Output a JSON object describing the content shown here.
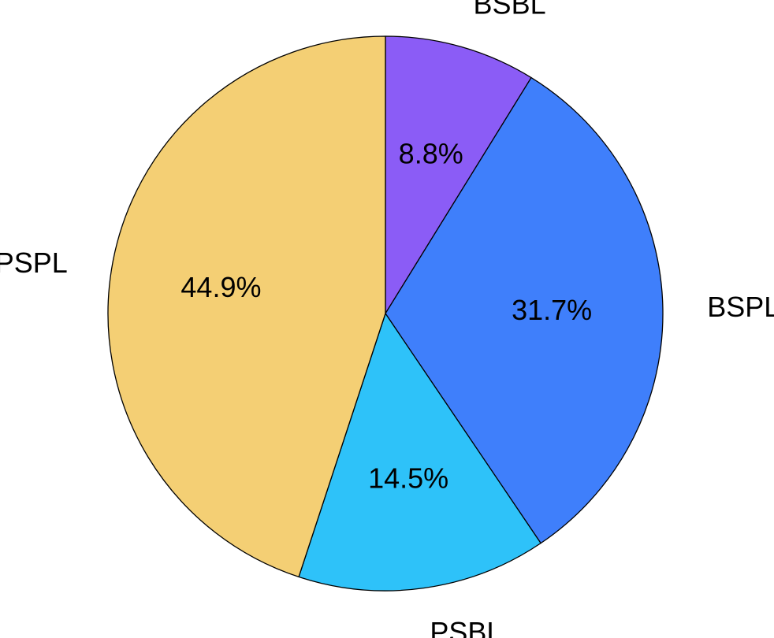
{
  "chart_data": {
    "type": "pie",
    "start_angle_deg": 90,
    "direction": "clockwise",
    "slices": [
      {
        "label": "BSBL",
        "value": 8.8,
        "pct_text": "8.8%",
        "color": "#8b5cf6"
      },
      {
        "label": "BSPL",
        "value": 31.7,
        "pct_text": "31.7%",
        "color": "#3f7ffb"
      },
      {
        "label": "PSBL",
        "value": 14.5,
        "pct_text": "14.5%",
        "color": "#2ec2f9"
      },
      {
        "label": "PSPL",
        "value": 44.9,
        "pct_text": "44.9%",
        "color": "#f4cf74"
      }
    ]
  }
}
